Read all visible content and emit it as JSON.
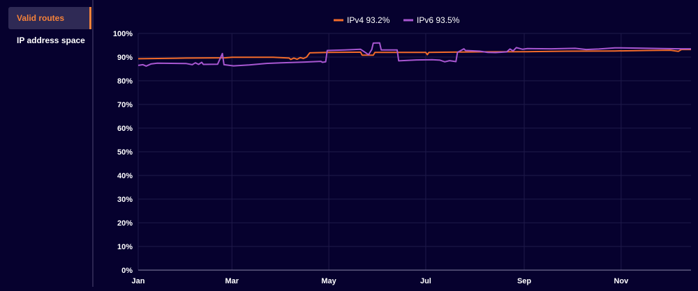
{
  "sidebar": {
    "items": [
      {
        "label": "Valid routes",
        "active": true
      },
      {
        "label": "IP address space",
        "active": false
      }
    ]
  },
  "colors": {
    "background": "#06012e",
    "ipv4": "#f26b2a",
    "ipv6": "#a857d1",
    "grid": "#1f1a4a",
    "accent": "#f5823a"
  },
  "chart_data": {
    "type": "line",
    "title": "",
    "xlabel": "",
    "ylabel": "",
    "ylim": [
      0,
      100
    ],
    "y_ticks": [
      "0%",
      "10%",
      "20%",
      "30%",
      "40%",
      "50%",
      "60%",
      "70%",
      "80%",
      "90%",
      "100%"
    ],
    "x_ticks": [
      "Jan",
      "Mar",
      "May",
      "Jul",
      "Sep",
      "Nov"
    ],
    "x_tick_days": [
      0,
      59,
      120,
      181,
      243,
      304
    ],
    "x_range_days": [
      0,
      348
    ],
    "grid": true,
    "legend_position": "top-center",
    "series": [
      {
        "name": "IPv4",
        "legend_label": "IPv4 93.2%",
        "color": "#f26b2a",
        "points": [
          [
            0,
            89.3
          ],
          [
            30,
            89.6
          ],
          [
            55,
            89.7
          ],
          [
            59,
            89.9
          ],
          [
            85,
            89.9
          ],
          [
            95,
            89.6
          ],
          [
            96,
            89.0
          ],
          [
            98,
            89.6
          ],
          [
            100,
            89.1
          ],
          [
            102,
            89.8
          ],
          [
            104,
            89.4
          ],
          [
            106,
            90.0
          ],
          [
            108,
            91.8
          ],
          [
            120,
            92.0
          ],
          [
            140,
            92.1
          ],
          [
            141,
            90.8
          ],
          [
            148,
            90.8
          ],
          [
            149,
            92.0
          ],
          [
            181,
            92.0
          ],
          [
            182,
            91.0
          ],
          [
            183,
            92.0
          ],
          [
            215,
            92.2
          ],
          [
            245,
            92.3
          ],
          [
            270,
            92.5
          ],
          [
            300,
            92.6
          ],
          [
            320,
            92.8
          ],
          [
            335,
            92.9
          ],
          [
            340,
            92.4
          ],
          [
            342,
            93.2
          ],
          [
            348,
            93.2
          ]
        ]
      },
      {
        "name": "IPv6",
        "legend_label": "IPv6 93.5%",
        "color": "#a857d1",
        "points": [
          [
            0,
            86.5
          ],
          [
            3,
            86.8
          ],
          [
            5,
            86.2
          ],
          [
            8,
            87.1
          ],
          [
            12,
            87.4
          ],
          [
            30,
            87.3
          ],
          [
            34,
            86.8
          ],
          [
            36,
            87.6
          ],
          [
            38,
            86.9
          ],
          [
            40,
            87.8
          ],
          [
            41,
            86.9
          ],
          [
            50,
            87.0
          ],
          [
            53,
            91.5
          ],
          [
            54,
            86.8
          ],
          [
            60,
            86.3
          ],
          [
            70,
            86.7
          ],
          [
            80,
            87.3
          ],
          [
            90,
            87.6
          ],
          [
            105,
            87.9
          ],
          [
            115,
            88.2
          ],
          [
            116,
            87.8
          ],
          [
            118,
            88.0
          ],
          [
            119,
            92.8
          ],
          [
            130,
            93.0
          ],
          [
            140,
            93.3
          ],
          [
            145,
            91.0
          ],
          [
            147,
            93.2
          ],
          [
            148,
            95.9
          ],
          [
            152,
            96.0
          ],
          [
            153,
            93.0
          ],
          [
            163,
            93.0
          ],
          [
            164,
            88.4
          ],
          [
            175,
            88.8
          ],
          [
            185,
            88.9
          ],
          [
            190,
            88.7
          ],
          [
            193,
            88.0
          ],
          [
            196,
            88.5
          ],
          [
            200,
            88.1
          ],
          [
            201,
            92.0
          ],
          [
            205,
            93.5
          ],
          [
            206,
            92.8
          ],
          [
            215,
            92.5
          ],
          [
            220,
            92.0
          ],
          [
            225,
            91.9
          ],
          [
            232,
            92.2
          ],
          [
            234,
            93.4
          ],
          [
            236,
            92.6
          ],
          [
            238,
            94.0
          ],
          [
            242,
            93.3
          ],
          [
            245,
            93.6
          ],
          [
            260,
            93.5
          ],
          [
            275,
            93.7
          ],
          [
            282,
            93.2
          ],
          [
            290,
            93.4
          ],
          [
            300,
            93.9
          ],
          [
            315,
            93.8
          ],
          [
            330,
            93.6
          ],
          [
            342,
            93.5
          ],
          [
            348,
            93.5
          ]
        ]
      }
    ]
  }
}
